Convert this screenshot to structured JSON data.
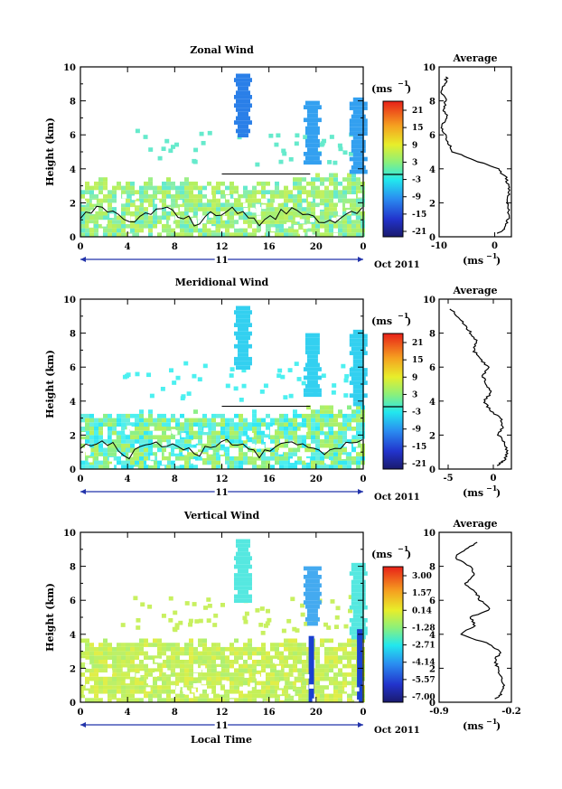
{
  "figure": {
    "colorbar_unit": "(ms",
    "colorbar_unit_exp": "−1",
    "average_title": "Average",
    "date_marker": "11",
    "date_label": "Oct 2011",
    "x_axis_title": "Local Time"
  },
  "chart_data": [
    {
      "type": "heatmap",
      "title": "Zonal Wind",
      "ylabel": "Height (km)",
      "x_ticks": [
        "0",
        "4",
        "8",
        "12",
        "16",
        "20",
        "0"
      ],
      "xlim": [
        0,
        24
      ],
      "ylim": [
        0,
        10
      ],
      "y_ticks": [
        "0",
        "2",
        "4",
        "6",
        "8",
        "10"
      ],
      "colorbar_ticks": [
        "21",
        "15",
        "9",
        "3",
        "-3",
        "-9",
        "-15",
        "-21"
      ],
      "colorbar_zero_line": 0,
      "average_profile": {
        "x_ticks": [
          "-10",
          "0"
        ],
        "xlim": [
          -10,
          3
        ],
        "xlabel": "(ms−1)",
        "height_km": [
          0.2,
          0.5,
          1,
          1.5,
          2,
          2.5,
          3,
          3.5,
          4,
          4.5,
          5,
          5.5,
          6,
          6.5,
          7,
          7.5,
          8,
          8.5,
          9,
          9.5
        ],
        "value": [
          0.5,
          1.8,
          2.4,
          2.6,
          2.2,
          2.5,
          2.4,
          2.0,
          0.5,
          -3.5,
          -7.5,
          -8.2,
          -9.0,
          -9.5,
          -8.5,
          -9.2,
          -8.8,
          -9.5,
          -9.0,
          -8.5
        ]
      }
    },
    {
      "type": "heatmap",
      "title": "Meridional Wind",
      "ylabel": "Height (km)",
      "x_ticks": [
        "0",
        "4",
        "8",
        "12",
        "16",
        "20",
        "0"
      ],
      "xlim": [
        0,
        24
      ],
      "ylim": [
        0,
        10
      ],
      "y_ticks": [
        "0",
        "2",
        "4",
        "6",
        "8",
        "10"
      ],
      "colorbar_ticks": [
        "21",
        "15",
        "9",
        "3",
        "-3",
        "-9",
        "-15",
        "-21"
      ],
      "colorbar_zero_line": 0,
      "average_profile": {
        "x_ticks": [
          "-5",
          "0"
        ],
        "xlim": [
          -6,
          2
        ],
        "xlabel": "(ms−1)",
        "height_km": [
          0.2,
          0.5,
          1,
          1.5,
          2,
          2.5,
          3,
          3.5,
          4,
          4.5,
          5,
          5.5,
          6,
          6.5,
          7,
          7.5,
          8,
          8.5,
          9,
          9.5
        ],
        "value": [
          0.3,
          1.2,
          1.5,
          1.3,
          0.6,
          1.0,
          0.8,
          -0.4,
          -1.0,
          -0.2,
          -0.8,
          -1.2,
          -0.5,
          -1.5,
          -2.2,
          -1.8,
          -2.5,
          -3.2,
          -4.0,
          -4.8
        ]
      }
    },
    {
      "type": "heatmap",
      "title": "Vertical Wind",
      "ylabel": "Height (km)",
      "x_ticks": [
        "0",
        "4",
        "8",
        "12",
        "16",
        "20",
        "0"
      ],
      "xlim": [
        0,
        24
      ],
      "ylim": [
        0,
        10
      ],
      "y_ticks": [
        "0",
        "2",
        "4",
        "6",
        "8",
        "10"
      ],
      "colorbar_ticks": [
        "3.00",
        "1.57",
        "0.14",
        "-1.28",
        "-2.71",
        "-4.14",
        "-5.57",
        "-7.00"
      ],
      "average_profile": {
        "x_ticks": [
          "-0.9",
          "-0.2"
        ],
        "xlim": [
          -0.9,
          -0.2
        ],
        "xlabel": "(ms−1)",
        "height_km": [
          0.2,
          0.5,
          1,
          1.5,
          2,
          2.5,
          3,
          3.5,
          4,
          4.5,
          5,
          5.5,
          6,
          6.5,
          7,
          7.5,
          8,
          8.5,
          9,
          9.5
        ],
        "value": [
          -0.35,
          -0.3,
          -0.28,
          -0.3,
          -0.33,
          -0.36,
          -0.3,
          -0.45,
          -0.7,
          -0.55,
          -0.6,
          -0.4,
          -0.5,
          -0.55,
          -0.65,
          -0.55,
          -0.6,
          -0.75,
          -0.65,
          -0.5
        ]
      }
    }
  ]
}
